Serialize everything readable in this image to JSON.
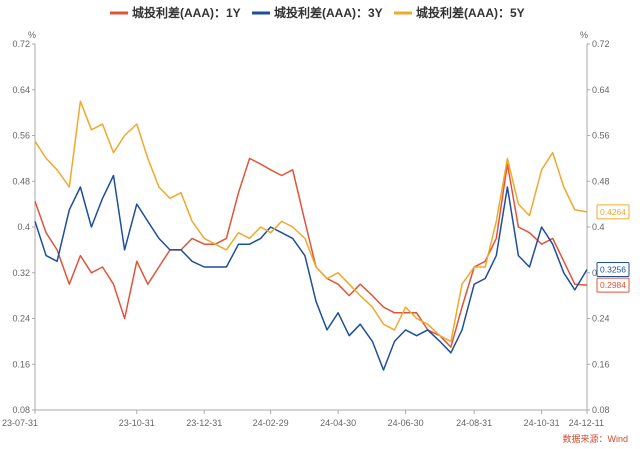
{
  "chart_data": {
    "type": "line",
    "title": "",
    "y_unit_left": "%",
    "y_unit_right": "%",
    "ylim": [
      0.08,
      0.72
    ],
    "y_ticks": [
      "0.08",
      "0.16",
      "0.24",
      "0.32",
      "0.4",
      "0.48",
      "0.56",
      "0.64",
      "0.72"
    ],
    "x_ticks": [
      "23-07-31",
      "23-10-31",
      "23-12-31",
      "24-02-29",
      "24-04-30",
      "24-06-30",
      "24-08-31",
      "24-10-31",
      "24-12-11"
    ],
    "grid": false,
    "legend_position": "top-center",
    "source": "数据来源：Wind",
    "series": [
      {
        "name": "城投利差(AAA)：1Y",
        "color": "#e1543a",
        "end_label": "0.2984",
        "values": [
          [
            "23-07-31",
            0.445
          ],
          [
            "23-08-10",
            0.39
          ],
          [
            "23-08-20",
            0.36
          ],
          [
            "23-08-31",
            0.3
          ],
          [
            "23-09-10",
            0.35
          ],
          [
            "23-09-20",
            0.32
          ],
          [
            "23-09-30",
            0.33
          ],
          [
            "23-10-10",
            0.3
          ],
          [
            "23-10-20",
            0.24
          ],
          [
            "23-10-31",
            0.34
          ],
          [
            "23-11-10",
            0.3
          ],
          [
            "23-11-20",
            0.33
          ],
          [
            "23-11-30",
            0.36
          ],
          [
            "23-12-10",
            0.36
          ],
          [
            "23-12-20",
            0.38
          ],
          [
            "23-12-31",
            0.37
          ],
          [
            "24-01-10",
            0.37
          ],
          [
            "24-01-20",
            0.38
          ],
          [
            "24-01-31",
            0.46
          ],
          [
            "24-02-10",
            0.52
          ],
          [
            "24-02-20",
            0.51
          ],
          [
            "24-02-29",
            0.5
          ],
          [
            "24-03-10",
            0.49
          ],
          [
            "24-03-20",
            0.5
          ],
          [
            "24-03-31",
            0.41
          ],
          [
            "24-04-10",
            0.33
          ],
          [
            "24-04-20",
            0.31
          ],
          [
            "24-04-30",
            0.3
          ],
          [
            "24-05-10",
            0.28
          ],
          [
            "24-05-20",
            0.3
          ],
          [
            "24-05-31",
            0.28
          ],
          [
            "24-06-10",
            0.26
          ],
          [
            "24-06-20",
            0.25
          ],
          [
            "24-06-30",
            0.25
          ],
          [
            "24-07-10",
            0.25
          ],
          [
            "24-07-20",
            0.22
          ],
          [
            "24-07-31",
            0.21
          ],
          [
            "24-08-10",
            0.19
          ],
          [
            "24-08-20",
            0.26
          ],
          [
            "24-08-31",
            0.33
          ],
          [
            "24-09-10",
            0.34
          ],
          [
            "24-09-20",
            0.38
          ],
          [
            "24-09-30",
            0.51
          ],
          [
            "24-10-10",
            0.4
          ],
          [
            "24-10-20",
            0.39
          ],
          [
            "24-10-31",
            0.37
          ],
          [
            "24-11-10",
            0.38
          ],
          [
            "24-11-20",
            0.34
          ],
          [
            "24-11-30",
            0.3
          ],
          [
            "24-12-11",
            0.2984
          ]
        ]
      },
      {
        "name": "城投利差(AAA)：3Y",
        "color": "#1d4f9a",
        "end_label": "0.3256",
        "values": [
          [
            "23-07-31",
            0.41
          ],
          [
            "23-08-10",
            0.35
          ],
          [
            "23-08-20",
            0.34
          ],
          [
            "23-08-31",
            0.43
          ],
          [
            "23-09-10",
            0.47
          ],
          [
            "23-09-20",
            0.4
          ],
          [
            "23-09-30",
            0.45
          ],
          [
            "23-10-10",
            0.49
          ],
          [
            "23-10-20",
            0.36
          ],
          [
            "23-10-31",
            0.44
          ],
          [
            "23-11-10",
            0.41
          ],
          [
            "23-11-20",
            0.38
          ],
          [
            "23-11-30",
            0.36
          ],
          [
            "23-12-10",
            0.36
          ],
          [
            "23-12-20",
            0.34
          ],
          [
            "23-12-31",
            0.33
          ],
          [
            "24-01-10",
            0.33
          ],
          [
            "24-01-20",
            0.33
          ],
          [
            "24-01-31",
            0.37
          ],
          [
            "24-02-10",
            0.37
          ],
          [
            "24-02-20",
            0.38
          ],
          [
            "24-02-29",
            0.4
          ],
          [
            "24-03-10",
            0.39
          ],
          [
            "24-03-20",
            0.38
          ],
          [
            "24-03-31",
            0.35
          ],
          [
            "24-04-10",
            0.27
          ],
          [
            "24-04-20",
            0.22
          ],
          [
            "24-04-30",
            0.25
          ],
          [
            "24-05-10",
            0.21
          ],
          [
            "24-05-20",
            0.23
          ],
          [
            "24-05-31",
            0.2
          ],
          [
            "24-06-10",
            0.15
          ],
          [
            "24-06-20",
            0.2
          ],
          [
            "24-06-30",
            0.22
          ],
          [
            "24-07-10",
            0.21
          ],
          [
            "24-07-20",
            0.22
          ],
          [
            "24-07-31",
            0.2
          ],
          [
            "24-08-10",
            0.18
          ],
          [
            "24-08-20",
            0.22
          ],
          [
            "24-08-31",
            0.3
          ],
          [
            "24-09-10",
            0.31
          ],
          [
            "24-09-20",
            0.35
          ],
          [
            "24-09-30",
            0.47
          ],
          [
            "24-10-10",
            0.35
          ],
          [
            "24-10-20",
            0.33
          ],
          [
            "24-10-31",
            0.4
          ],
          [
            "24-11-10",
            0.37
          ],
          [
            "24-11-20",
            0.32
          ],
          [
            "24-11-30",
            0.29
          ],
          [
            "24-12-11",
            0.3256
          ]
        ]
      },
      {
        "name": "城投利差(AAA)：5Y",
        "color": "#f0a92c",
        "end_label": "0.4264",
        "values": [
          [
            "23-07-31",
            0.55
          ],
          [
            "23-08-10",
            0.52
          ],
          [
            "23-08-20",
            0.5
          ],
          [
            "23-08-31",
            0.47
          ],
          [
            "23-09-10",
            0.62
          ],
          [
            "23-09-20",
            0.57
          ],
          [
            "23-09-30",
            0.58
          ],
          [
            "23-10-10",
            0.53
          ],
          [
            "23-10-20",
            0.56
          ],
          [
            "23-10-31",
            0.58
          ],
          [
            "23-11-10",
            0.52
          ],
          [
            "23-11-20",
            0.47
          ],
          [
            "23-11-30",
            0.45
          ],
          [
            "23-12-10",
            0.46
          ],
          [
            "23-12-20",
            0.41
          ],
          [
            "23-12-31",
            0.38
          ],
          [
            "24-01-10",
            0.37
          ],
          [
            "24-01-20",
            0.36
          ],
          [
            "24-01-31",
            0.39
          ],
          [
            "24-02-10",
            0.38
          ],
          [
            "24-02-20",
            0.4
          ],
          [
            "24-02-29",
            0.39
          ],
          [
            "24-03-10",
            0.41
          ],
          [
            "24-03-20",
            0.4
          ],
          [
            "24-03-31",
            0.38
          ],
          [
            "24-04-10",
            0.33
          ],
          [
            "24-04-20",
            0.31
          ],
          [
            "24-04-30",
            0.32
          ],
          [
            "24-05-10",
            0.3
          ],
          [
            "24-05-20",
            0.28
          ],
          [
            "24-05-31",
            0.26
          ],
          [
            "24-06-10",
            0.23
          ],
          [
            "24-06-20",
            0.22
          ],
          [
            "24-06-30",
            0.26
          ],
          [
            "24-07-10",
            0.24
          ],
          [
            "24-07-20",
            0.23
          ],
          [
            "24-07-31",
            0.21
          ],
          [
            "24-08-10",
            0.2
          ],
          [
            "24-08-20",
            0.3
          ],
          [
            "24-08-31",
            0.33
          ],
          [
            "24-09-10",
            0.33
          ],
          [
            "24-09-20",
            0.41
          ],
          [
            "24-09-30",
            0.52
          ],
          [
            "24-10-10",
            0.44
          ],
          [
            "24-10-20",
            0.42
          ],
          [
            "24-10-31",
            0.5
          ],
          [
            "24-11-10",
            0.53
          ],
          [
            "24-11-20",
            0.47
          ],
          [
            "24-11-30",
            0.43
          ],
          [
            "24-12-11",
            0.4264
          ]
        ]
      }
    ]
  }
}
